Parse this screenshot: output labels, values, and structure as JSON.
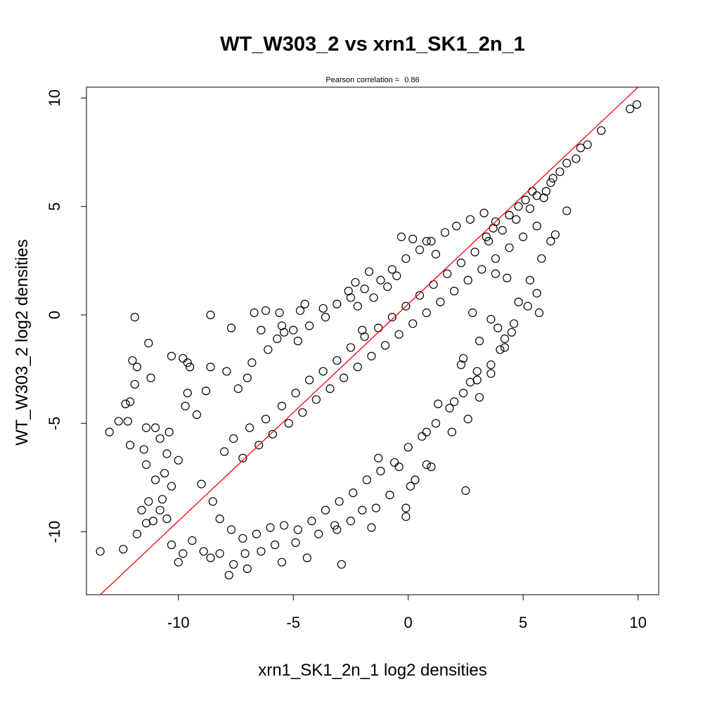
{
  "chart_data": {
    "type": "scatter",
    "title": "WT_W303_2 vs xrn1_SK1_2n_1",
    "subtitle_label": "Pearson correlation =",
    "subtitle_value": "0.86",
    "xlabel": "xrn1_SK1_2n_1 log2 densities",
    "ylabel": "WT_W303_2 log2 densities",
    "xlim": [
      -14.0,
      10.9
    ],
    "ylim": [
      -12.9,
      10.5
    ],
    "x_ticks": [
      -10,
      -5,
      0,
      5,
      10
    ],
    "x_tick_labels": [
      "-10",
      "-5",
      "0",
      "5",
      "10"
    ],
    "y_ticks": [
      -10,
      -5,
      0,
      5,
      10
    ],
    "y_tick_labels": [
      "-10",
      "-5",
      "0",
      "5",
      "10"
    ],
    "grid": false,
    "legend": "none",
    "point_style": "open-circle",
    "point_color": "#000000",
    "fit_line": {
      "color": "#ff0000",
      "intercept": 0.5,
      "slope": 1.0
    },
    "points": [
      [
        9.95,
        9.7
      ],
      [
        9.65,
        9.5
      ],
      [
        8.4,
        8.5
      ],
      [
        7.8,
        7.85
      ],
      [
        7.5,
        7.7
      ],
      [
        7.3,
        7.2
      ],
      [
        6.9,
        7.0
      ],
      [
        6.6,
        6.6
      ],
      [
        6.3,
        6.3
      ],
      [
        6.2,
        6.1
      ],
      [
        6.0,
        5.7
      ],
      [
        5.6,
        5.5
      ],
      [
        5.4,
        5.7
      ],
      [
        5.1,
        5.3
      ],
      [
        4.8,
        5.0
      ],
      [
        4.4,
        4.6
      ],
      [
        3.8,
        4.3
      ],
      [
        6.4,
        3.7
      ],
      [
        -0.3,
        3.6
      ],
      [
        0.2,
        3.5
      ],
      [
        0.8,
        3.4
      ],
      [
        3.4,
        3.6
      ],
      [
        3.7,
        4.0
      ],
      [
        1.2,
        2.8
      ],
      [
        -1.7,
        2.0
      ],
      [
        -0.5,
        1.8
      ],
      [
        -2.3,
        1.5
      ],
      [
        -0.9,
        1.3
      ],
      [
        -2.5,
        0.8
      ],
      [
        -1.5,
        0.8
      ],
      [
        -4.5,
        0.5
      ],
      [
        -2.2,
        0.4
      ],
      [
        -3.7,
        0.3
      ],
      [
        -4.7,
        0.2
      ],
      [
        -5.6,
        0.1
      ],
      [
        -6.2,
        0.2
      ],
      [
        -6.7,
        0.1
      ],
      [
        -8.6,
        0.0
      ],
      [
        -11.9,
        -0.1
      ],
      [
        -7.7,
        -0.6
      ],
      [
        -5.5,
        -0.5
      ],
      [
        -5.4,
        -0.8
      ],
      [
        -2.0,
        -0.7
      ],
      [
        -6.4,
        -0.7
      ],
      [
        -4.8,
        -1.2
      ],
      [
        5.7,
        0.1
      ],
      [
        5.6,
        1.0
      ],
      [
        4.3,
        1.7
      ],
      [
        3.8,
        1.9
      ],
      [
        4.6,
        -0.4
      ],
      [
        3.6,
        -0.2
      ],
      [
        2.8,
        0.1
      ],
      [
        5.2,
        0.4
      ],
      [
        -11.3,
        -1.3
      ],
      [
        -11.8,
        -2.4
      ],
      [
        -11.2,
        -2.9
      ],
      [
        -10.3,
        -1.9
      ],
      [
        -9.8,
        -2.0
      ],
      [
        -9.5,
        -2.4
      ],
      [
        -12.0,
        -2.1
      ],
      [
        -9.6,
        -2.2
      ],
      [
        -11.9,
        -3.2
      ],
      [
        -12.3,
        -4.1
      ],
      [
        -12.1,
        -4.0
      ],
      [
        -9.6,
        -3.6
      ],
      [
        -9.7,
        -4.2
      ],
      [
        -12.6,
        -4.9
      ],
      [
        -12.2,
        -4.9
      ],
      [
        -13.0,
        -5.4
      ],
      [
        -11.4,
        -5.2
      ],
      [
        -11.0,
        -5.2
      ],
      [
        -10.4,
        -5.4
      ],
      [
        -11.5,
        -6.2
      ],
      [
        -11.4,
        -6.9
      ],
      [
        -11.0,
        -7.6
      ],
      [
        -11.3,
        -8.6
      ],
      [
        -11.6,
        -9.0
      ],
      [
        -11.1,
        -9.5
      ],
      [
        -11.8,
        -10.1
      ],
      [
        -11.4,
        -9.6
      ],
      [
        -13.4,
        -10.9
      ],
      [
        -12.4,
        -10.8
      ],
      [
        -10.3,
        -10.6
      ],
      [
        -10.0,
        -11.4
      ],
      [
        -9.8,
        -11.0
      ],
      [
        -8.6,
        -11.2
      ],
      [
        -7.6,
        -11.5
      ],
      [
        -7.8,
        -12.0
      ],
      [
        -7.0,
        -11.7
      ],
      [
        -5.5,
        -11.4
      ],
      [
        -4.4,
        -11.2
      ],
      [
        -2.9,
        -11.5
      ],
      [
        -3.2,
        -9.7
      ],
      [
        -2.5,
        -9.5
      ],
      [
        -1.6,
        -9.8
      ],
      [
        -0.1,
        -8.9
      ],
      [
        -0.1,
        -9.3
      ],
      [
        2.5,
        -8.1
      ],
      [
        0.3,
        -7.6
      ],
      [
        1.0,
        -7.0
      ],
      [
        -0.4,
        -7.0
      ],
      [
        -1.3,
        -6.6
      ],
      [
        0.8,
        -5.4
      ],
      [
        1.3,
        -4.1
      ],
      [
        2.0,
        -4.0
      ],
      [
        2.7,
        -3.1
      ],
      [
        3.0,
        -2.6
      ],
      [
        2.3,
        -2.3
      ],
      [
        3.1,
        -1.2
      ],
      [
        4.2,
        -1.1
      ],
      [
        3.9,
        -0.6
      ],
      [
        2.4,
        -2.0
      ],
      [
        -12.1,
        -6.0
      ],
      [
        -10.8,
        -5.7
      ],
      [
        -10.5,
        -6.4
      ],
      [
        -10.0,
        -6.7
      ],
      [
        -10.6,
        -7.3
      ],
      [
        -10.3,
        -7.9
      ],
      [
        -10.7,
        -8.5
      ],
      [
        -10.8,
        -9.0
      ],
      [
        -10.5,
        -9.4
      ],
      [
        -9.4,
        -10.4
      ],
      [
        -8.9,
        -10.9
      ],
      [
        -8.2,
        -11.0
      ],
      [
        -7.1,
        -11.0
      ],
      [
        -6.4,
        -10.9
      ],
      [
        -5.8,
        -10.6
      ],
      [
        -4.9,
        -10.5
      ],
      [
        -3.9,
        -10.1
      ],
      [
        -3.1,
        -9.9
      ],
      [
        -2.0,
        -9.0
      ],
      [
        -1.4,
        -8.9
      ],
      [
        -0.8,
        -8.3
      ],
      [
        0.1,
        -7.9
      ],
      [
        0.8,
        -6.9
      ],
      [
        1.9,
        -5.4
      ],
      [
        2.6,
        -4.8
      ],
      [
        3.1,
        -3.8
      ],
      [
        3.6,
        -2.7
      ],
      [
        4.0,
        -1.6
      ],
      [
        4.5,
        -0.8
      ],
      [
        4.8,
        0.6
      ],
      [
        5.3,
        1.6
      ],
      [
        5.8,
        2.6
      ],
      [
        6.2,
        3.4
      ],
      [
        6.9,
        4.8
      ],
      [
        -9.2,
        -4.6
      ],
      [
        -8.8,
        -3.5
      ],
      [
        -8.6,
        -2.4
      ],
      [
        -7.9,
        -2.6
      ],
      [
        -7.4,
        -3.4
      ],
      [
        -7.0,
        -2.9
      ],
      [
        -6.8,
        -2.2
      ],
      [
        -6.1,
        -1.6
      ],
      [
        -5.7,
        -1.1
      ],
      [
        -5.0,
        -0.7
      ],
      [
        -4.3,
        -0.5
      ],
      [
        -3.6,
        -0.1
      ],
      [
        -3.1,
        0.5
      ],
      [
        -2.6,
        1.1
      ],
      [
        -1.9,
        1.2
      ],
      [
        -1.2,
        1.6
      ],
      [
        -0.7,
        2.1
      ],
      [
        -0.1,
        2.6
      ],
      [
        0.5,
        3.0
      ],
      [
        1.0,
        3.4
      ],
      [
        1.6,
        3.8
      ],
      [
        2.1,
        4.1
      ],
      [
        2.7,
        4.4
      ],
      [
        3.3,
        4.7
      ],
      [
        -8.0,
        -6.3
      ],
      [
        -7.6,
        -5.7
      ],
      [
        -7.2,
        -6.6
      ],
      [
        -6.9,
        -5.2
      ],
      [
        -6.5,
        -6.0
      ],
      [
        -6.2,
        -4.8
      ],
      [
        -5.9,
        -5.5
      ],
      [
        -5.5,
        -4.2
      ],
      [
        -5.2,
        -5.0
      ],
      [
        -4.9,
        -3.6
      ],
      [
        -4.6,
        -4.5
      ],
      [
        -4.3,
        -3.0
      ],
      [
        -4.0,
        -3.9
      ],
      [
        -3.7,
        -2.6
      ],
      [
        -3.4,
        -3.4
      ],
      [
        -3.1,
        -2.1
      ],
      [
        -2.8,
        -2.9
      ],
      [
        -2.5,
        -1.5
      ],
      [
        -2.2,
        -2.4
      ],
      [
        -1.9,
        -1.0
      ],
      [
        -1.6,
        -1.9
      ],
      [
        -1.3,
        -0.6
      ],
      [
        -1.0,
        -1.4
      ],
      [
        -0.7,
        -0.1
      ],
      [
        -0.4,
        -0.9
      ],
      [
        -0.1,
        0.4
      ],
      [
        0.2,
        -0.4
      ],
      [
        0.5,
        0.9
      ],
      [
        0.8,
        0.1
      ],
      [
        1.1,
        1.4
      ],
      [
        1.4,
        0.6
      ],
      [
        1.7,
        1.9
      ],
      [
        2.0,
        1.1
      ],
      [
        2.3,
        2.4
      ],
      [
        2.6,
        1.6
      ],
      [
        2.9,
        2.9
      ],
      [
        3.2,
        2.1
      ],
      [
        3.5,
        3.4
      ],
      [
        3.8,
        2.6
      ],
      [
        4.1,
        3.9
      ],
      [
        4.4,
        3.1
      ],
      [
        4.7,
        4.4
      ],
      [
        5.0,
        3.6
      ],
      [
        5.3,
        4.9
      ],
      [
        5.6,
        4.1
      ],
      [
        5.9,
        5.4
      ],
      [
        -9.0,
        -7.8
      ],
      [
        -8.5,
        -8.6
      ],
      [
        -8.2,
        -9.4
      ],
      [
        -7.7,
        -9.9
      ],
      [
        -7.2,
        -10.3
      ],
      [
        -6.6,
        -10.1
      ],
      [
        -6.0,
        -9.8
      ],
      [
        -5.4,
        -9.7
      ],
      [
        -4.8,
        -9.9
      ],
      [
        -4.2,
        -9.5
      ],
      [
        -3.6,
        -9.0
      ],
      [
        -3.0,
        -8.6
      ],
      [
        -2.4,
        -8.2
      ],
      [
        -1.8,
        -7.6
      ],
      [
        -1.2,
        -7.2
      ],
      [
        -0.6,
        -6.8
      ],
      [
        0.0,
        -6.1
      ],
      [
        0.6,
        -5.6
      ],
      [
        1.2,
        -5.0
      ],
      [
        1.8,
        -4.3
      ],
      [
        2.4,
        -3.6
      ],
      [
        3.0,
        -3.0
      ],
      [
        3.6,
        -2.3
      ],
      [
        4.2,
        -1.5
      ]
    ]
  }
}
